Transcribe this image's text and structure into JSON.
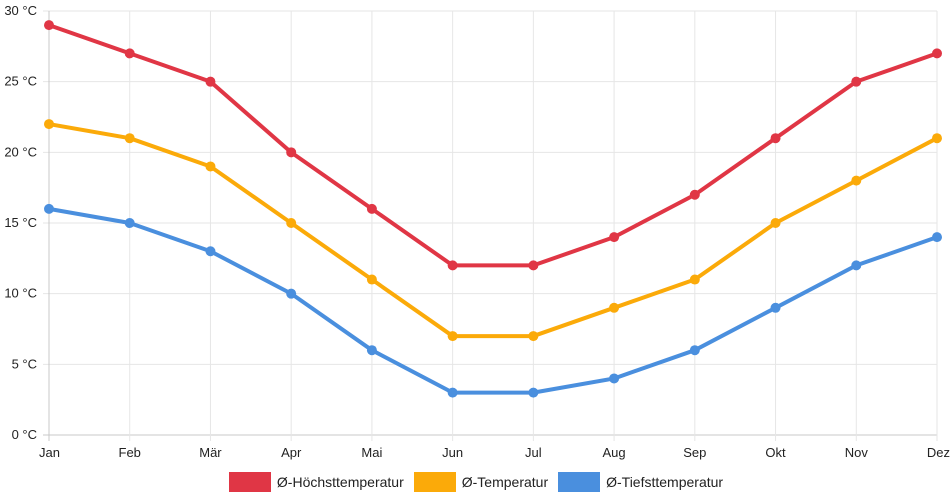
{
  "chart_data": {
    "type": "line",
    "categories": [
      "Jan",
      "Feb",
      "Mär",
      "Apr",
      "Mai",
      "Jun",
      "Jul",
      "Aug",
      "Sep",
      "Okt",
      "Nov",
      "Dez"
    ],
    "yticks": [
      "0 °C",
      "5 °C",
      "10 °C",
      "15 °C",
      "20 °C",
      "25 °C",
      "30 °C"
    ],
    "ylim": [
      0,
      30
    ],
    "grid": true,
    "legend_position": "bottom",
    "series": [
      {
        "name": "Ø-Höchsttemperatur",
        "color": "#e03645",
        "values": [
          29,
          27,
          25,
          20,
          16,
          12,
          12,
          14,
          17,
          21,
          25,
          27
        ]
      },
      {
        "name": "Ø-Temperatur",
        "color": "#fbaa09",
        "values": [
          22,
          21,
          19,
          15,
          11,
          7,
          7,
          9,
          11,
          15,
          18,
          21
        ]
      },
      {
        "name": "Ø-Tiefsttemperatur",
        "color": "#4a8fde",
        "values": [
          16,
          15,
          13,
          10,
          6,
          3,
          3,
          4,
          6,
          9,
          12,
          14
        ]
      }
    ]
  }
}
